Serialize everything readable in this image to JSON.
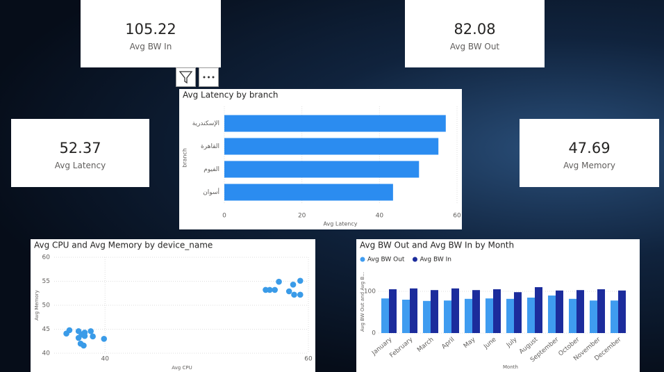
{
  "cards": [
    {
      "value": 105.22,
      "label": "Avg BW In"
    },
    {
      "value": 82.08,
      "label": "Avg BW Out"
    },
    {
      "value": 52.37,
      "label": "Avg Latency"
    },
    {
      "value": 47.69,
      "label": "Avg Memory"
    }
  ],
  "chart_data": [
    {
      "type": "bar",
      "orientation": "horizontal",
      "title": "Avg Latency by branch",
      "x_label": "Avg Latency",
      "y_label": "branch",
      "categories": [
        "الإسكندرية",
        "القاهرة",
        "الفيوم",
        "أسوان"
      ],
      "values": [
        57.1,
        55.2,
        50.2,
        43.5
      ],
      "color": "#2b8cf0",
      "xlim": [
        0,
        60
      ],
      "xticks": [
        0,
        20,
        40,
        60
      ],
      "grid": true
    },
    {
      "type": "scatter",
      "title": "Avg CPU and Avg Memory by device_name",
      "x_label": "Avg CPU",
      "y_label": "Avg Memory",
      "color": "#3a9be8",
      "x": [
        36.2,
        36.5,
        37.4,
        37.4,
        37.7,
        38.0,
        38.6,
        38.0,
        38.8,
        37.6,
        37.9,
        39.9,
        55.8,
        56.2,
        56.7,
        57.1,
        58.1,
        58.5,
        58.6,
        59.2,
        59.2
      ],
      "y": [
        44.1,
        44.8,
        44.6,
        43.2,
        43.9,
        44.3,
        44.6,
        43.6,
        43.5,
        42.0,
        41.6,
        43.0,
        53.2,
        53.2,
        53.2,
        54.9,
        52.9,
        54.3,
        52.2,
        55.1,
        52.2
      ],
      "xlim": [
        35,
        60
      ],
      "xticks": [
        40,
        60
      ],
      "ylim": [
        40,
        60
      ],
      "yticks": [
        40,
        45,
        50,
        55,
        60
      ],
      "grid": true
    },
    {
      "type": "grouped_bar",
      "title": "Avg BW Out and Avg BW In by Month",
      "x_label": "Month",
      "y_label": "Avg BW Out and Avg B...",
      "categories": [
        "January",
        "February",
        "March",
        "April",
        "May",
        "June",
        "July",
        "August",
        "September",
        "October",
        "November",
        "December"
      ],
      "series": [
        {
          "name": "Avg BW Out",
          "color": "#3f9cf0",
          "values": [
            83,
            80,
            77,
            78,
            82,
            83,
            82,
            85,
            90,
            82,
            78,
            78
          ]
        },
        {
          "name": "Avg BW In",
          "color": "#1c2c9c",
          "values": [
            105,
            107,
            103,
            107,
            103,
            105,
            98,
            110,
            102,
            103,
            105,
            102
          ]
        }
      ],
      "ylim": [
        0,
        150
      ],
      "yticks": [
        0,
        100
      ],
      "grid": true,
      "legend": "top-left"
    }
  ]
}
